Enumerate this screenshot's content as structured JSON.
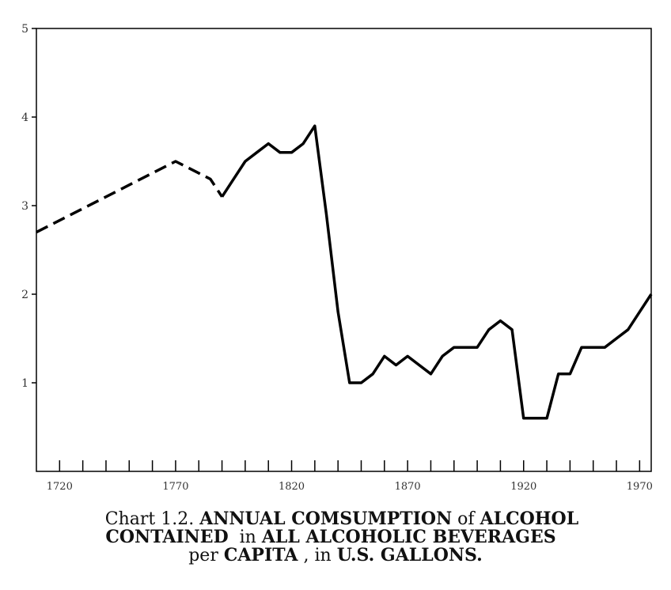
{
  "chart_data": {
    "type": "line",
    "title": "",
    "xlabel": "",
    "ylabel": "",
    "xlim": [
      1710,
      1975
    ],
    "ylim": [
      0,
      5
    ],
    "x_ticks": [
      1720,
      1770,
      1820,
      1870,
      1920,
      1970
    ],
    "x_minor_step": 10,
    "y_ticks": [
      1,
      2,
      3,
      4,
      5
    ],
    "grid": false,
    "series": [
      {
        "style": "dashed",
        "x": [
          1710,
          1770,
          1785,
          1790
        ],
        "y": [
          2.7,
          3.5,
          3.3,
          3.1
        ]
      },
      {
        "style": "solid",
        "x": [
          1790,
          1795,
          1800,
          1805,
          1810,
          1815,
          1820,
          1825,
          1830,
          1835,
          1840,
          1845,
          1850,
          1855,
          1860,
          1865,
          1870,
          1875,
          1880,
          1885,
          1890,
          1895,
          1900,
          1905,
          1910,
          1915,
          1920,
          1925,
          1930,
          1935,
          1940,
          1945,
          1950,
          1955,
          1960,
          1965,
          1970,
          1975
        ],
        "y": [
          3.1,
          3.3,
          3.5,
          3.6,
          3.7,
          3.6,
          3.6,
          3.7,
          3.9,
          2.9,
          1.8,
          1.0,
          1.0,
          1.1,
          1.3,
          1.2,
          1.3,
          1.2,
          1.1,
          1.3,
          1.4,
          1.4,
          1.4,
          1.6,
          1.7,
          1.6,
          0.6,
          0.6,
          0.6,
          1.1,
          1.1,
          1.4,
          1.4,
          1.4,
          1.5,
          1.6,
          1.8,
          2.0
        ]
      }
    ]
  },
  "caption": {
    "line1_prefix": "Chart 1.2. ",
    "line1_bold_a": "ANNUAL COMSUMPTION",
    "line1_of": " of ",
    "line1_bold_b": "ALCOHOL",
    "line2_bold_a": "CONTAINED",
    "line2_in": "  in ",
    "line2_bold_b": "ALL ALCOHOLIC BEVERAGES",
    "line3_per": "per ",
    "line3_bold_a": "CAPITA",
    "line3_comma": " , in ",
    "line3_bold_b": "U.S. GALLONS."
  }
}
